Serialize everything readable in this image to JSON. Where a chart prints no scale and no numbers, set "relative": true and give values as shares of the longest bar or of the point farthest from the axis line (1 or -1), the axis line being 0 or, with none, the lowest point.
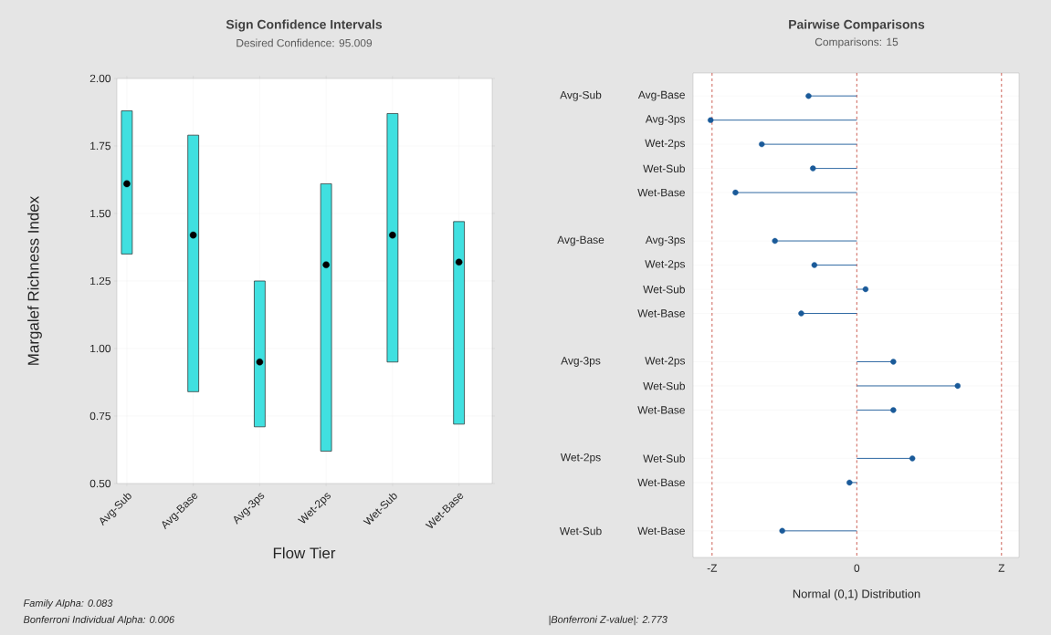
{
  "chart_data": [
    {
      "type": "bar",
      "title": "Sign Confidence Intervals",
      "subtitle": "Desired Confidence: 95.009",
      "xlabel": "Flow Tier",
      "ylabel": "Margalef Richness Index",
      "categories": [
        "Avg-Sub",
        "Avg-Base",
        "Avg-3ps",
        "Wet-2ps",
        "Wet-Sub",
        "Wet-Base"
      ],
      "series": [
        {
          "type": "bar",
          "color": "#40e0e0",
          "base": [
            1.35,
            0.84,
            0.71,
            0.62,
            0.95,
            0.72
          ],
          "values": [
            0.53,
            0.95,
            0.54,
            0.99,
            0.92,
            0.75
          ]
        },
        {
          "type": "scatter",
          "color": "#000000",
          "marker": "circle",
          "x": [
            "Avg-Sub",
            "Avg-Base",
            "Avg-3ps",
            "Wet-2ps",
            "Wet-Sub",
            "Wet-Base"
          ],
          "values": [
            1.61,
            1.42,
            0.95,
            1.31,
            1.42,
            1.32
          ]
        }
      ],
      "ylim": [
        0.5,
        2.0
      ],
      "yticks": [
        {
          "value": 0.5,
          "label": "0.50"
        },
        {
          "value": 0.75,
          "label": "0.75"
        },
        {
          "value": 1.0,
          "label": "1.00"
        },
        {
          "value": 1.25,
          "label": "1.25"
        },
        {
          "value": 1.5,
          "label": "1.50"
        },
        {
          "value": 1.75,
          "label": "1.75"
        },
        {
          "value": 2.0,
          "label": "2.00"
        }
      ],
      "grid": true,
      "annotations": [
        "Family Alpha: 0.083",
        "Bonferroni Individual Alpha: 0.006"
      ]
    },
    {
      "type": "lollipop",
      "orientation": "horizontal",
      "title": "Pairwise Comparisons",
      "subtitle": "Comparisons: 15",
      "xlabel": "Normal (0,1) Distribution",
      "categories": [
        "Avg-Base",
        "Avg-3ps",
        "Wet-2ps",
        "Wet-Sub",
        "Wet-Base",
        null,
        "Avg-3ps",
        "Wet-2ps",
        "Wet-Sub",
        "Wet-Base",
        null,
        "Wet-2ps",
        "Wet-Sub",
        "Wet-Base",
        null,
        "Wet-Sub",
        "Wet-Base",
        null,
        "Wet-Base"
      ],
      "series": [
        {
          "color": "#1a5a99",
          "values": [
            -0.33,
            -1,
            -0.65,
            -0.3,
            -0.83,
            null,
            -0.56,
            -0.29,
            0.06,
            -0.38,
            null,
            0.25,
            0.69,
            0.25,
            null,
            0.38,
            -0.05,
            null,
            -0.51
          ]
        }
      ],
      "relative": true,
      "grid": "y",
      "marker": "circle",
      "ref_lines": [
        {
          "axis": "x",
          "value": -0.99,
          "label": "-Z",
          "color": "#c0392b",
          "line_style": "dashed"
        },
        {
          "axis": "x",
          "value": 0,
          "label": "0",
          "color": "#c0392b",
          "line_style": "dashed"
        },
        {
          "axis": "x",
          "value": 0.99,
          "label": "Z",
          "color": "#c0392b",
          "line_style": "dashed"
        }
      ],
      "annotations": [
        "Avg-Sub",
        "Avg-Base",
        "Avg-3ps",
        "Wet-2ps",
        "Wet-Sub",
        "|Bonferroni Z-value|: 2.773"
      ]
    }
  ]
}
